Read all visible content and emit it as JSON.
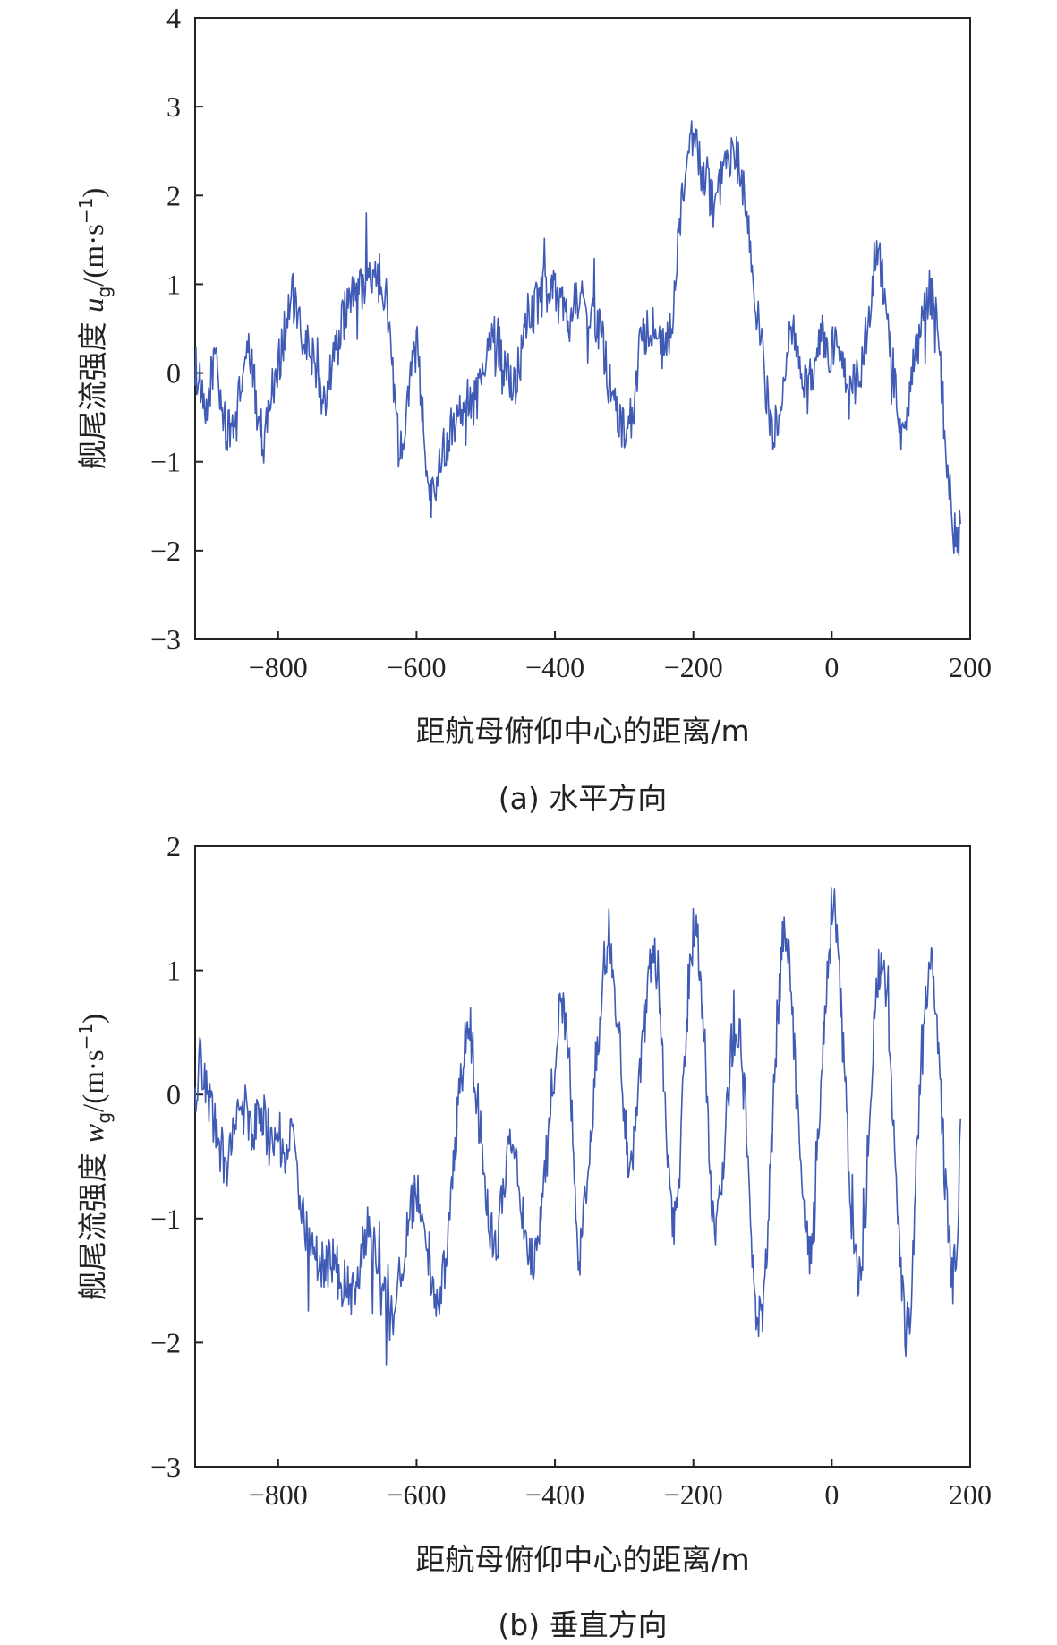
{
  "chart_data": [
    {
      "type": "line",
      "caption": "(a) 水平方向",
      "xlabel": "距航母俯仰中心的距离/m",
      "ylabel_prefix": "舰尾流强度 ",
      "ylabel_var": "u",
      "ylabel_sub": "g",
      "ylabel_unit": "/(m·s",
      "ylabel_sup": "−1",
      "ylabel_close": ")",
      "xlim": [
        -920,
        200
      ],
      "ylim": [
        -3,
        4
      ],
      "xticks": [
        -800,
        -600,
        -400,
        -200,
        0,
        200
      ],
      "xtick_labels": [
        "−800",
        "−600",
        "−400",
        "−200",
        "0",
        "200"
      ],
      "yticks": [
        -3,
        -2,
        -1,
        0,
        1,
        2,
        3,
        4
      ],
      "ytick_labels": [
        "−3",
        "−2",
        "−1",
        "0",
        "1",
        "2",
        "3",
        "4"
      ],
      "grid": false,
      "series": [
        {
          "color": "#3f5bb6",
          "noise": 0.28,
          "points": [
            [
              -920,
              0.1
            ],
            [
              -912,
              -0.2
            ],
            [
              -905,
              -0.6
            ],
            [
              -898,
              -0.1
            ],
            [
              -890,
              0.25
            ],
            [
              -882,
              -0.4
            ],
            [
              -872,
              -0.7
            ],
            [
              -860,
              -0.5
            ],
            [
              -850,
              0.1
            ],
            [
              -840,
              0.2
            ],
            [
              -832,
              -0.3
            ],
            [
              -822,
              -0.8
            ],
            [
              -812,
              -0.3
            ],
            [
              -800,
              0.1
            ],
            [
              -790,
              0.5
            ],
            [
              -780,
              0.9
            ],
            [
              -770,
              0.5
            ],
            [
              -760,
              0.3
            ],
            [
              -750,
              0.2
            ],
            [
              -742,
              0.0
            ],
            [
              -735,
              -0.3
            ],
            [
              -725,
              0.0
            ],
            [
              -712,
              0.4
            ],
            [
              -700,
              0.8
            ],
            [
              -688,
              0.9
            ],
            [
              -675,
              1.0
            ],
            [
              -662,
              1.0
            ],
            [
              -650,
              1.1
            ],
            [
              -640,
              0.6
            ],
            [
              -632,
              -0.2
            ],
            [
              -625,
              -0.9
            ],
            [
              -615,
              -0.4
            ],
            [
              -605,
              0.1
            ],
            [
              -598,
              0.3
            ],
            [
              -590,
              -0.6
            ],
            [
              -580,
              -1.4
            ],
            [
              -572,
              -1.2
            ],
            [
              -562,
              -0.9
            ],
            [
              -550,
              -0.6
            ],
            [
              -540,
              -0.4
            ],
            [
              -530,
              -0.3
            ],
            [
              -520,
              -0.4
            ],
            [
              -510,
              -0.2
            ],
            [
              -500,
              0.3
            ],
            [
              -490,
              0.5
            ],
            [
              -480,
              0.3
            ],
            [
              -470,
              0.0
            ],
            [
              -458,
              -0.2
            ],
            [
              -445,
              0.4
            ],
            [
              -432,
              0.7
            ],
            [
              -420,
              0.9
            ],
            [
              -408,
              1.0
            ],
            [
              -395,
              0.8
            ],
            [
              -380,
              0.6
            ],
            [
              -368,
              0.9
            ],
            [
              -355,
              0.7
            ],
            [
              -342,
              0.6
            ],
            [
              -330,
              0.3
            ],
            [
              -318,
              -0.3
            ],
            [
              -306,
              -0.5
            ],
            [
              -296,
              -0.8
            ],
            [
              -286,
              -0.3
            ],
            [
              -275,
              0.4
            ],
            [
              -262,
              0.6
            ],
            [
              -250,
              0.3
            ],
            [
              -240,
              0.2
            ],
            [
              -230,
              0.7
            ],
            [
              -220,
              1.6
            ],
            [
              -210,
              2.3
            ],
            [
              -200,
              2.7
            ],
            [
              -190,
              2.3
            ],
            [
              -180,
              2.2
            ],
            [
              -170,
              1.8
            ],
            [
              -160,
              2.1
            ],
            [
              -150,
              2.3
            ],
            [
              -140,
              2.5
            ],
            [
              -130,
              2.2
            ],
            [
              -120,
              1.6
            ],
            [
              -110,
              0.8
            ],
            [
              -100,
              0.2
            ],
            [
              -92,
              -0.4
            ],
            [
              -85,
              -0.8
            ],
            [
              -75,
              -0.3
            ],
            [
              -65,
              0.2
            ],
            [
              -55,
              0.4
            ],
            [
              -45,
              0.1
            ],
            [
              -35,
              -0.2
            ],
            [
              -25,
              0.1
            ],
            [
              -15,
              0.5
            ],
            [
              -5,
              0.2
            ],
            [
              5,
              0.3
            ],
            [
              15,
              0.0
            ],
            [
              25,
              -0.3
            ],
            [
              35,
              -0.1
            ],
            [
              45,
              0.1
            ],
            [
              55,
              0.7
            ],
            [
              65,
              1.5
            ],
            [
              72,
              1.2
            ],
            [
              80,
              0.5
            ],
            [
              90,
              0.0
            ],
            [
              100,
              -0.8
            ],
            [
              110,
              -0.4
            ],
            [
              120,
              0.2
            ],
            [
              130,
              0.5
            ],
            [
              140,
              0.9
            ],
            [
              148,
              0.8
            ],
            [
              155,
              0.2
            ],
            [
              163,
              -0.6
            ],
            [
              172,
              -1.5
            ],
            [
              180,
              -2.0
            ],
            [
              186,
              -1.7
            ]
          ]
        }
      ]
    },
    {
      "type": "line",
      "caption": "(b) 垂直方向",
      "xlabel": "距航母俯仰中心的距离/m",
      "ylabel_prefix": "舰尾流强度 ",
      "ylabel_var": "w",
      "ylabel_sub": "g",
      "ylabel_unit": "/(m·s",
      "ylabel_sup": "−1",
      "ylabel_close": ")",
      "xlim": [
        -920,
        200
      ],
      "ylim": [
        -3,
        2
      ],
      "xticks": [
        -800,
        -600,
        -400,
        -200,
        0,
        200
      ],
      "xtick_labels": [
        "−800",
        "−600",
        "−400",
        "−200",
        "0",
        "200"
      ],
      "yticks": [
        -3,
        -2,
        -1,
        0,
        1,
        2
      ],
      "ytick_labels": [
        "−3",
        "−2",
        "−1",
        "0",
        "1",
        "2"
      ],
      "grid": false,
      "series": [
        {
          "color": "#3f5bb6",
          "noise": 0.22,
          "points": [
            [
              -920,
              0.0
            ],
            [
              -912,
              0.3
            ],
            [
              -905,
              0.1
            ],
            [
              -895,
              -0.2
            ],
            [
              -885,
              -0.4
            ],
            [
              -875,
              -0.6
            ],
            [
              -862,
              -0.3
            ],
            [
              -850,
              -0.1
            ],
            [
              -838,
              -0.3
            ],
            [
              -825,
              -0.1
            ],
            [
              -812,
              -0.4
            ],
            [
              -800,
              -0.3
            ],
            [
              -790,
              -0.5
            ],
            [
              -780,
              -0.4
            ],
            [
              -770,
              -0.7
            ],
            [
              -760,
              -1.1
            ],
            [
              -748,
              -1.3
            ],
            [
              -735,
              -1.4
            ],
            [
              -722,
              -1.3
            ],
            [
              -710,
              -1.5
            ],
            [
              -698,
              -1.6
            ],
            [
              -685,
              -1.5
            ],
            [
              -672,
              -1.1
            ],
            [
              -660,
              -1.3
            ],
            [
              -650,
              -1.6
            ],
            [
              -640,
              -1.8
            ],
            [
              -630,
              -1.7
            ],
            [
              -620,
              -1.3
            ],
            [
              -610,
              -1.0
            ],
            [
              -598,
              -0.7
            ],
            [
              -588,
              -1.0
            ],
            [
              -578,
              -1.5
            ],
            [
              -568,
              -1.8
            ],
            [
              -558,
              -1.3
            ],
            [
              -548,
              -0.7
            ],
            [
              -540,
              -0.1
            ],
            [
              -530,
              0.4
            ],
            [
              -522,
              0.5
            ],
            [
              -515,
              0.1
            ],
            [
              -505,
              -0.5
            ],
            [
              -495,
              -1.1
            ],
            [
              -485,
              -1.2
            ],
            [
              -475,
              -0.8
            ],
            [
              -465,
              -0.3
            ],
            [
              -455,
              -0.5
            ],
            [
              -445,
              -1.0
            ],
            [
              -435,
              -1.4
            ],
            [
              -425,
              -1.2
            ],
            [
              -415,
              -0.7
            ],
            [
              -405,
              0.0
            ],
            [
              -395,
              0.6
            ],
            [
              -388,
              0.7
            ],
            [
              -380,
              0.3
            ],
            [
              -372,
              -0.6
            ],
            [
              -365,
              -1.4
            ],
            [
              -358,
              -1.0
            ],
            [
              -350,
              -0.4
            ],
            [
              -340,
              0.3
            ],
            [
              -330,
              1.0
            ],
            [
              -322,
              1.3
            ],
            [
              -315,
              1.0
            ],
            [
              -308,
              0.5
            ],
            [
              -300,
              -0.1
            ],
            [
              -292,
              -0.6
            ],
            [
              -285,
              -0.3
            ],
            [
              -275,
              0.3
            ],
            [
              -265,
              0.9
            ],
            [
              -258,
              1.3
            ],
            [
              -250,
              0.9
            ],
            [
              -242,
              0.1
            ],
            [
              -235,
              -0.8
            ],
            [
              -228,
              -1.0
            ],
            [
              -220,
              -0.6
            ],
            [
              -212,
              0.3
            ],
            [
              -205,
              1.1
            ],
            [
              -198,
              1.4
            ],
            [
              -190,
              1.0
            ],
            [
              -182,
              0.2
            ],
            [
              -175,
              -0.7
            ],
            [
              -168,
              -1.1
            ],
            [
              -160,
              -0.8
            ],
            [
              -152,
              -0.2
            ],
            [
              -145,
              0.4
            ],
            [
              -138,
              0.6
            ],
            [
              -130,
              0.3
            ],
            [
              -122,
              -0.4
            ],
            [
              -115,
              -1.3
            ],
            [
              -108,
              -1.9
            ],
            [
              -100,
              -1.7
            ],
            [
              -92,
              -1.0
            ],
            [
              -85,
              -0.2
            ],
            [
              -78,
              0.7
            ],
            [
              -70,
              1.3
            ],
            [
              -62,
              1.2
            ],
            [
              -55,
              0.5
            ],
            [
              -48,
              -0.3
            ],
            [
              -40,
              -1.0
            ],
            [
              -32,
              -1.3
            ],
            [
              -25,
              -1.0
            ],
            [
              -18,
              -0.2
            ],
            [
              -10,
              0.6
            ],
            [
              -3,
              1.2
            ],
            [
              4,
              1.5
            ],
            [
              10,
              1.0
            ],
            [
              18,
              0.2
            ],
            [
              25,
              -0.6
            ],
            [
              32,
              -1.3
            ],
            [
              40,
              -1.5
            ],
            [
              48,
              -1.0
            ],
            [
              55,
              -0.1
            ],
            [
              62,
              0.7
            ],
            [
              70,
              1.1
            ],
            [
              78,
              0.9
            ],
            [
              85,
              0.3
            ],
            [
              92,
              -0.6
            ],
            [
              100,
              -1.4
            ],
            [
              107,
              -2.0
            ],
            [
              115,
              -1.6
            ],
            [
              122,
              -0.6
            ],
            [
              130,
              0.3
            ],
            [
              138,
              0.8
            ],
            [
              145,
              1.0
            ],
            [
              152,
              0.6
            ],
            [
              160,
              -0.3
            ],
            [
              168,
              -1.1
            ],
            [
              175,
              -1.5
            ],
            [
              182,
              -1.2
            ],
            [
              186,
              -0.2
            ]
          ]
        }
      ]
    }
  ]
}
